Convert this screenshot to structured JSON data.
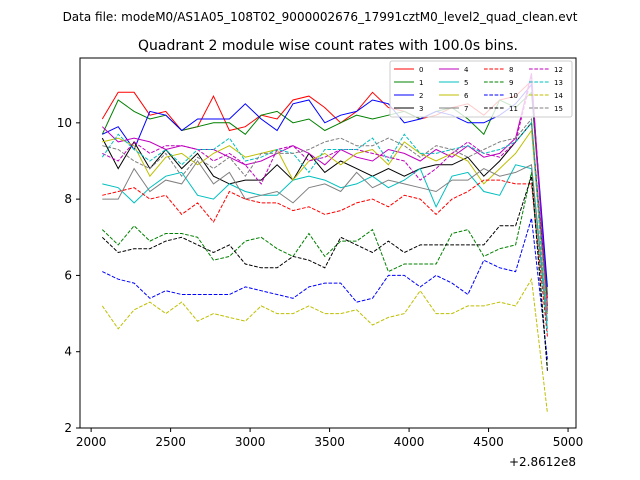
{
  "chart_data": {
    "type": "line",
    "suptitle": "Data file: modeM0/AS1A05_108T02_9000002676_17991cztM0_level2_quad_clean.evt",
    "title": "Quadrant 2 module wise count rates with 100.0s bins.",
    "xlabel": "",
    "ylabel": "",
    "x_offset_label": "+2.8612e8",
    "xlim": [
      1930,
      5050
    ],
    "ylim": [
      2,
      11.7
    ],
    "xticks": [
      2000,
      2500,
      3000,
      3500,
      4000,
      4500,
      5000
    ],
    "yticks": [
      2,
      4,
      6,
      8,
      10
    ],
    "grid": false,
    "legend_location": "top-right",
    "x": [
      2070,
      2170,
      2270,
      2370,
      2470,
      2570,
      2670,
      2770,
      2870,
      2970,
      3070,
      3170,
      3270,
      3370,
      3470,
      3570,
      3670,
      3770,
      3870,
      3970,
      4070,
      4170,
      4270,
      4370,
      4470,
      4570,
      4670,
      4770,
      4870
    ],
    "series": [
      {
        "name": "0",
        "color": "#ff0000",
        "dash": "solid",
        "values": [
          10.1,
          10.8,
          10.8,
          10.2,
          10.3,
          9.8,
          9.9,
          10.7,
          9.8,
          9.9,
          10.2,
          10.1,
          10.6,
          10.7,
          10.4,
          10.0,
          10.3,
          10.8,
          10.4,
          10.3,
          10.1,
          10.2,
          10.4,
          10.5,
          10.2,
          10.6,
          10.7,
          11.1,
          5.4
        ]
      },
      {
        "name": "1",
        "color": "#008000",
        "dash": "solid",
        "values": [
          9.7,
          10.6,
          10.3,
          10.1,
          10.2,
          9.8,
          9.9,
          10.0,
          10.0,
          9.7,
          10.2,
          10.3,
          10.0,
          10.1,
          9.8,
          10.0,
          10.2,
          10.1,
          10.2,
          10.3,
          10.1,
          10.3,
          10.4,
          10.1,
          9.7,
          10.6,
          10.4,
          10.8,
          5.5
        ]
      },
      {
        "name": "2",
        "color": "#0000ff",
        "dash": "solid",
        "values": [
          9.7,
          9.9,
          9.3,
          10.3,
          10.2,
          9.8,
          10.1,
          10.1,
          10.1,
          10.5,
          10.1,
          9.8,
          10.5,
          10.6,
          10.0,
          10.2,
          10.3,
          10.6,
          10.5,
          10.0,
          10.1,
          10.3,
          10.2,
          10.0,
          10.0,
          10.2,
          10.5,
          11.0,
          5.7
        ]
      },
      {
        "name": "3",
        "color": "#000000",
        "dash": "solid",
        "values": [
          9.6,
          8.8,
          9.5,
          8.8,
          9.3,
          8.8,
          9.2,
          8.6,
          8.4,
          8.5,
          8.5,
          8.9,
          8.5,
          9.2,
          8.7,
          9.0,
          8.8,
          8.6,
          8.8,
          8.6,
          8.8,
          8.9,
          8.9,
          9.1,
          8.6,
          9.0,
          9.5,
          10.0,
          5.2
        ]
      },
      {
        "name": "4",
        "color": "#bf00bf",
        "dash": "solid",
        "values": [
          9.9,
          9.5,
          9.6,
          9.5,
          9.3,
          9.4,
          9.3,
          9.3,
          9.1,
          8.9,
          9.0,
          9.2,
          9.4,
          9.2,
          8.9,
          9.3,
          9.1,
          9.0,
          9.3,
          9.2,
          9.0,
          9.3,
          9.1,
          9.4,
          9.1,
          9.2,
          9.6,
          11.3,
          5.1
        ]
      },
      {
        "name": "5",
        "color": "#00bfbf",
        "dash": "solid",
        "values": [
          8.4,
          8.3,
          7.9,
          8.3,
          8.6,
          8.7,
          8.1,
          8.0,
          8.4,
          8.2,
          8.1,
          8.1,
          8.5,
          8.6,
          8.5,
          8.3,
          8.4,
          8.6,
          8.3,
          8.5,
          8.8,
          7.8,
          8.6,
          8.7,
          8.2,
          8.1,
          8.9,
          8.8,
          4.6
        ]
      },
      {
        "name": "6",
        "color": "#bfbf00",
        "dash": "solid",
        "values": [
          9.5,
          9.6,
          9.4,
          8.6,
          9.1,
          9.2,
          8.9,
          9.2,
          9.4,
          9.1,
          9.2,
          9.3,
          8.5,
          9.0,
          9.2,
          8.9,
          9.2,
          9.3,
          8.9,
          9.5,
          9.2,
          9.0,
          9.2,
          9.0,
          8.4,
          8.8,
          9.2,
          9.8,
          5.0
        ]
      },
      {
        "name": "7",
        "color": "#808080",
        "dash": "solid",
        "values": [
          8.0,
          8.0,
          8.8,
          8.2,
          8.5,
          8.4,
          9.0,
          8.4,
          8.7,
          8.0,
          8.1,
          8.2,
          7.9,
          8.3,
          8.4,
          8.2,
          8.7,
          8.3,
          8.5,
          8.4,
          8.3,
          8.2,
          8.5,
          8.5,
          8.8,
          8.6,
          8.7,
          8.9,
          4.8
        ]
      },
      {
        "name": "8",
        "color": "#ff0000",
        "dash": "dashed",
        "values": [
          8.1,
          8.2,
          8.3,
          8.0,
          8.1,
          7.6,
          7.9,
          7.4,
          8.2,
          8.0,
          7.9,
          7.9,
          7.7,
          7.8,
          7.6,
          7.7,
          7.9,
          8.0,
          7.8,
          8.1,
          8.0,
          7.6,
          8.0,
          8.2,
          8.5,
          8.5,
          8.4,
          8.4,
          4.4
        ]
      },
      {
        "name": "9",
        "color": "#008000",
        "dash": "dashed",
        "values": [
          7.2,
          6.8,
          7.3,
          6.9,
          7.1,
          7.1,
          7.0,
          6.4,
          6.5,
          6.9,
          7.0,
          6.7,
          6.5,
          7.1,
          6.5,
          6.9,
          6.9,
          7.2,
          6.1,
          6.3,
          6.3,
          6.3,
          7.1,
          7.2,
          6.5,
          6.7,
          6.8,
          8.7,
          3.6
        ]
      },
      {
        "name": "10",
        "color": "#0000ff",
        "dash": "dashed",
        "values": [
          6.1,
          5.9,
          5.8,
          5.4,
          5.6,
          5.5,
          5.5,
          5.5,
          5.5,
          5.7,
          5.6,
          5.5,
          5.4,
          5.7,
          5.8,
          5.8,
          5.3,
          5.4,
          6.0,
          6.0,
          5.7,
          6.0,
          5.8,
          5.5,
          6.4,
          6.2,
          6.1,
          7.5,
          3.8
        ]
      },
      {
        "name": "11",
        "color": "#000000",
        "dash": "dashed",
        "values": [
          7.0,
          6.6,
          6.7,
          6.7,
          6.9,
          7.0,
          6.8,
          6.6,
          6.8,
          6.3,
          6.2,
          6.2,
          6.5,
          6.4,
          6.2,
          7.0,
          6.8,
          6.6,
          6.9,
          6.6,
          6.8,
          6.8,
          6.8,
          6.8,
          6.8,
          7.3,
          7.3,
          8.6,
          3.5
        ]
      },
      {
        "name": "12",
        "color": "#bf00bf",
        "dash": "dashed",
        "values": [
          9.2,
          9.0,
          9.5,
          9.2,
          9.4,
          9.4,
          9.3,
          9.0,
          9.2,
          8.9,
          8.4,
          9.3,
          9.4,
          9.0,
          9.1,
          9.3,
          9.3,
          9.2,
          9.1,
          9.0,
          8.5,
          8.8,
          9.2,
          9.5,
          9.2,
          9.1,
          9.5,
          11.2,
          5.0
        ]
      },
      {
        "name": "13",
        "color": "#00bfbf",
        "dash": "dashed",
        "values": [
          9.1,
          9.7,
          9.3,
          9.0,
          9.3,
          8.9,
          9.3,
          9.3,
          9.6,
          9.0,
          9.1,
          9.3,
          9.2,
          8.7,
          9.3,
          9.3,
          9.3,
          9.6,
          9.0,
          9.7,
          9.2,
          9.2,
          9.3,
          9.4,
          9.2,
          9.3,
          9.5,
          10.0,
          4.5
        ]
      },
      {
        "name": "14",
        "color": "#bfbf00",
        "dash": "dashed",
        "values": [
          5.2,
          4.6,
          5.1,
          5.3,
          5.0,
          5.3,
          4.8,
          5.0,
          4.9,
          4.8,
          5.2,
          5.0,
          5.0,
          5.2,
          5.0,
          5.0,
          5.1,
          4.7,
          4.9,
          5.0,
          5.6,
          5.0,
          5.0,
          5.2,
          5.2,
          5.3,
          5.2,
          5.9,
          2.4
        ]
      },
      {
        "name": "15",
        "color": "#808080",
        "dash": "dashed",
        "values": [
          9.4,
          9.3,
          9.0,
          8.8,
          9.2,
          8.6,
          9.1,
          8.8,
          9.1,
          8.6,
          9.2,
          9.2,
          9.2,
          9.3,
          9.5,
          9.6,
          9.4,
          9.4,
          9.6,
          9.4,
          9.1,
          9.4,
          9.3,
          9.1,
          9.3,
          9.5,
          9.6,
          10.1,
          5.0
        ]
      }
    ]
  }
}
